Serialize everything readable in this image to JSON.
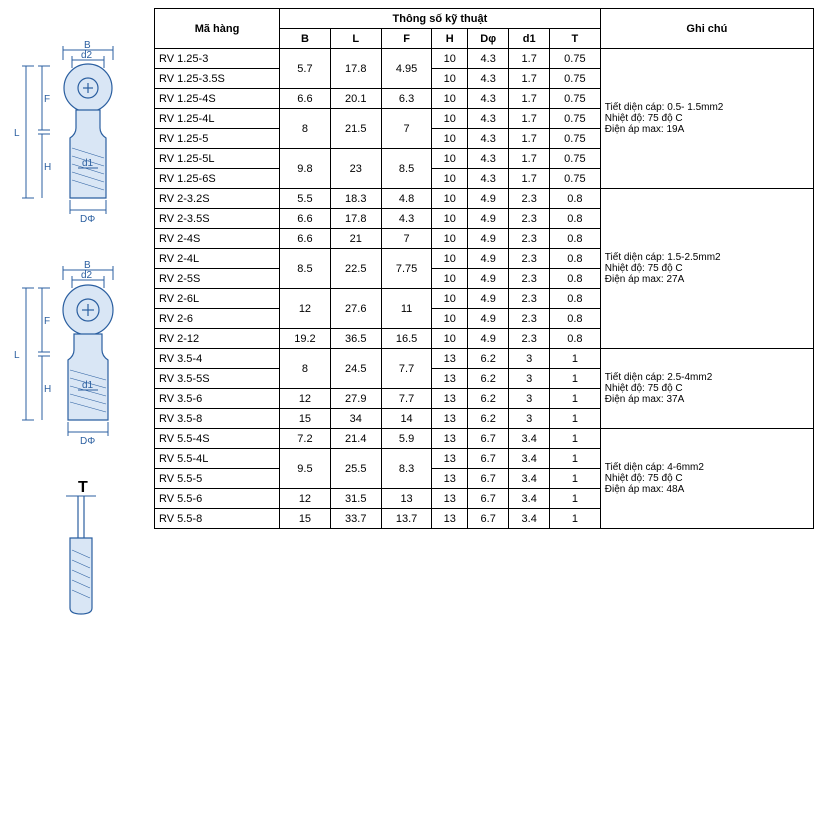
{
  "headers": {
    "ma_hang": "Mã hàng",
    "thong_so": "Thông số kỹ thuật",
    "ghi_chu": "Ghi chú",
    "cols": [
      "B",
      "L",
      "F",
      "H",
      "Dφ",
      "d1",
      "T"
    ]
  },
  "groups": [
    {
      "rows": [
        {
          "name": "RV 1.25-3",
          "B": "5.7",
          "L": "17.8",
          "F": "4.95",
          "H": "10",
          "Dphi": "4.3",
          "d1": "1.7",
          "T": "0.75",
          "spanBLF": 2
        },
        {
          "name": "RV 1.25-3.5S",
          "H": "10",
          "Dphi": "4.3",
          "d1": "1.7",
          "T": "0.75"
        },
        {
          "name": "RV 1.25-4S",
          "B": "6.6",
          "L": "20.1",
          "F": "6.3",
          "H": "10",
          "Dphi": "4.3",
          "d1": "1.7",
          "T": "0.75"
        },
        {
          "name": "RV 1.25-4L",
          "B": "8",
          "L": "21.5",
          "F": "7",
          "H": "10",
          "Dphi": "4.3",
          "d1": "1.7",
          "T": "0.75",
          "spanBLF": 2
        },
        {
          "name": "RV 1.25-5",
          "H": "10",
          "Dphi": "4.3",
          "d1": "1.7",
          "T": "0.75"
        },
        {
          "name": "RV 1.25-5L",
          "B": "9.8",
          "L": "23",
          "F": "8.5",
          "H": "10",
          "Dphi": "4.3",
          "d1": "1.7",
          "T": "0.75",
          "spanBLF": 2
        },
        {
          "name": "RV 1.25-6S",
          "H": "10",
          "Dphi": "4.3",
          "d1": "1.7",
          "T": "0.75"
        }
      ],
      "note": "Tiết diện cáp: 0.5- 1.5mm2\nNhiệt độ: 75 độ C\nĐiện áp max: 19A"
    },
    {
      "rows": [
        {
          "name": "RV 2-3.2S",
          "B": "5.5",
          "L": "18.3",
          "F": "4.8",
          "H": "10",
          "Dphi": "4.9",
          "d1": "2.3",
          "T": "0.8"
        },
        {
          "name": "RV 2-3.5S",
          "B": "6.6",
          "L": "17.8",
          "F": "4.3",
          "H": "10",
          "Dphi": "4.9",
          "d1": "2.3",
          "T": "0.8"
        },
        {
          "name": "RV 2-4S",
          "B": "6.6",
          "L": "21",
          "F": "7",
          "H": "10",
          "Dphi": "4.9",
          "d1": "2.3",
          "T": "0.8"
        },
        {
          "name": "RV 2-4L",
          "B": "8.5",
          "L": "22.5",
          "F": "7.75",
          "H": "10",
          "Dphi": "4.9",
          "d1": "2.3",
          "T": "0.8",
          "spanBLF": 2
        },
        {
          "name": "RV 2-5S",
          "H": "10",
          "Dphi": "4.9",
          "d1": "2.3",
          "T": "0.8"
        },
        {
          "name": "RV 2-6L",
          "B": "12",
          "L": "27.6",
          "F": "11",
          "H": "10",
          "Dphi": "4.9",
          "d1": "2.3",
          "T": "0.8",
          "spanBLF": 2
        },
        {
          "name": "RV 2-6",
          "H": "10",
          "Dphi": "4.9",
          "d1": "2.3",
          "T": "0.8"
        },
        {
          "name": "RV 2-12",
          "B": "19.2",
          "L": "36.5",
          "F": "16.5",
          "H": "10",
          "Dphi": "4.9",
          "d1": "2.3",
          "T": "0.8"
        }
      ],
      "note": "Tiết diện cáp: 1.5-2.5mm2\nNhiệt độ: 75 độ C\nĐiện áp max: 27A"
    },
    {
      "rows": [
        {
          "name": "RV 3.5-4",
          "B": "8",
          "L": "24.5",
          "F": "7.7",
          "H": "13",
          "Dphi": "6.2",
          "d1": "3",
          "T": "1",
          "spanBLF": 2
        },
        {
          "name": "RV 3.5-5S",
          "H": "13",
          "Dphi": "6.2",
          "d1": "3",
          "T": "1"
        },
        {
          "name": "RV 3.5-6",
          "B": "12",
          "L": "27.9",
          "F": "7.7",
          "H": "13",
          "Dphi": "6.2",
          "d1": "3",
          "T": "1"
        },
        {
          "name": "RV 3.5-8",
          "B": "15",
          "L": "34",
          "F": "14",
          "H": "13",
          "Dphi": "6.2",
          "d1": "3",
          "T": "1"
        }
      ],
      "note": "Tiết diện cáp: 2.5-4mm2\nNhiệt độ: 75 độ C\nĐiện áp max: 37A"
    },
    {
      "rows": [
        {
          "name": "RV 5.5-4S",
          "B": "7.2",
          "L": "21.4",
          "F": "5.9",
          "H": "13",
          "Dphi": "6.7",
          "d1": "3.4",
          "T": "1"
        },
        {
          "name": "RV 5.5-4L",
          "B": "9.5",
          "L": "25.5",
          "F": "8.3",
          "H": "13",
          "Dphi": "6.7",
          "d1": "3.4",
          "T": "1",
          "spanBLF": 2
        },
        {
          "name": "RV 5.5-5",
          "H": "13",
          "Dphi": "6.7",
          "d1": "3.4",
          "T": "1"
        },
        {
          "name": "RV 5.5-6",
          "B": "12",
          "L": "31.5",
          "F": "13",
          "H": "13",
          "Dphi": "6.7",
          "d1": "3.4",
          "T": "1"
        },
        {
          "name": "RV 5.5-8",
          "B": "15",
          "L": "33.7",
          "F": "13.7",
          "H": "13",
          "Dphi": "6.7",
          "d1": "3.4",
          "T": "1"
        }
      ],
      "note": "Tiết diện cáp: 4-6mm2\nNhiệt độ: 75 độ C\nĐiện áp max: 48A"
    }
  ],
  "diagram_labels": {
    "B": "B",
    "d2": "d2",
    "F": "F",
    "L": "L",
    "H": "H",
    "d1": "d1",
    "DPhi": "DΦ",
    "T": "T"
  },
  "colors": {
    "line": "#2b5fa0",
    "fill": "#d9e6f5",
    "text": "#000000"
  }
}
